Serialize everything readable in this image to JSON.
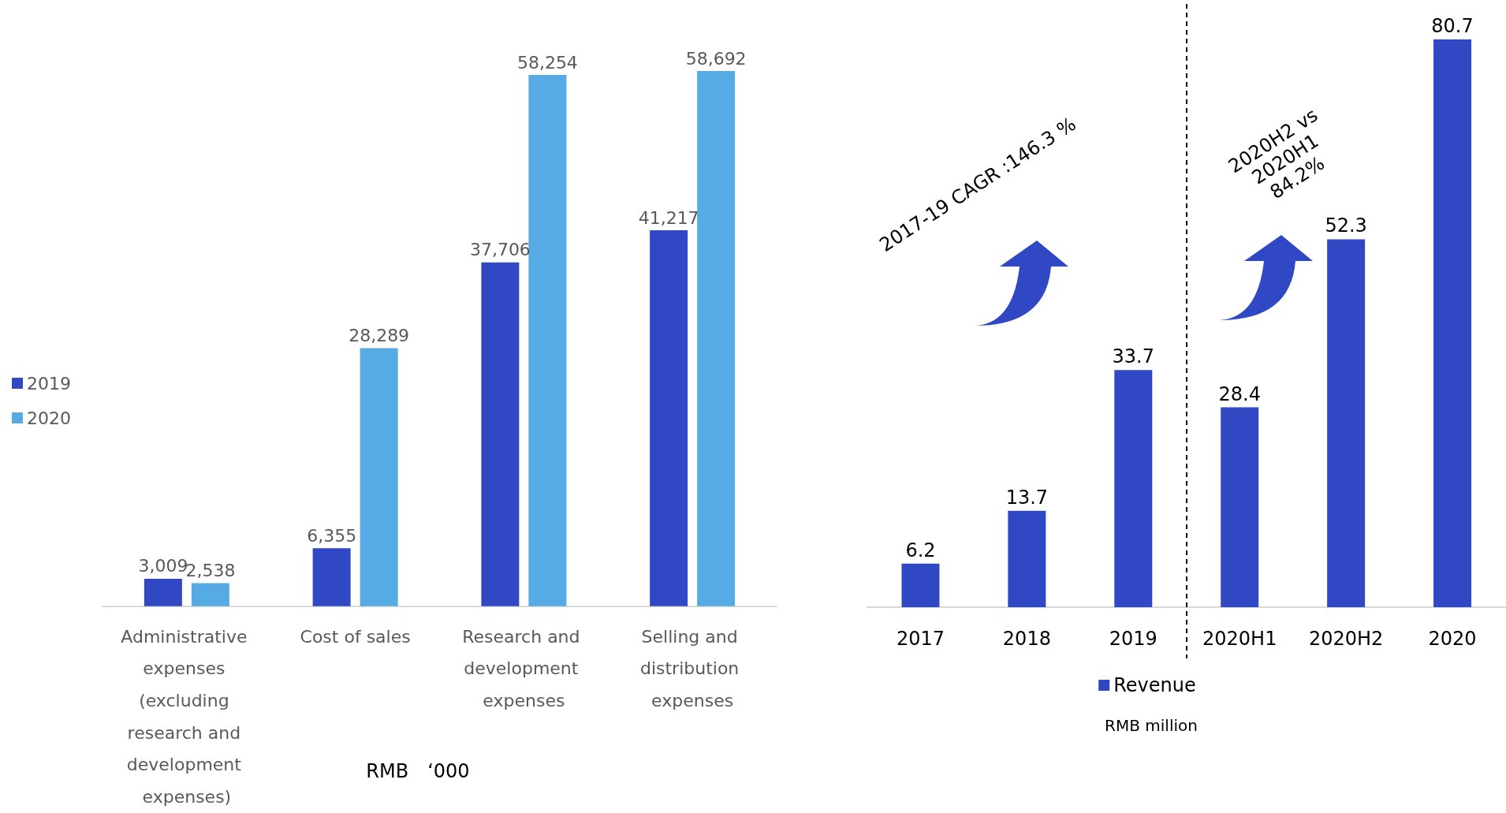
{
  "chart_data": [
    {
      "type": "bar",
      "categories": [
        "Administrative expenses (excluding research and development expenses)",
        "Cost of sales",
        "Research and development expenses",
        "Selling and distribution expenses"
      ],
      "series": [
        {
          "name": "2019",
          "color": "#3048c4",
          "values": [
            3009,
            6355,
            37706,
            41217
          ],
          "value_labels": [
            "3,009",
            "6,355",
            "37,706",
            "41,217"
          ]
        },
        {
          "name": "2020",
          "color": "#56abe4",
          "values": [
            2538,
            28289,
            58254,
            58692
          ],
          "value_labels": [
            "2,538",
            "28,289",
            "58,254",
            "58,692"
          ]
        }
      ],
      "legend": "left",
      "annotations": [
        "RMB　‘000"
      ]
    },
    {
      "type": "bar",
      "categories": [
        "2017",
        "2018",
        "2019",
        "2020H1",
        "2020H2",
        "2020"
      ],
      "series": [
        {
          "name": "Revenue",
          "color": "#3048c4",
          "values": [
            6.2,
            13.7,
            33.7,
            28.4,
            52.3,
            80.7
          ]
        }
      ],
      "data_labels": true,
      "legend": "bottom",
      "annotations": [
        "RMB million",
        "2017-19 CAGR :146.3 %",
        "2020H2 vs\n2020H1\n84.2%"
      ]
    }
  ]
}
